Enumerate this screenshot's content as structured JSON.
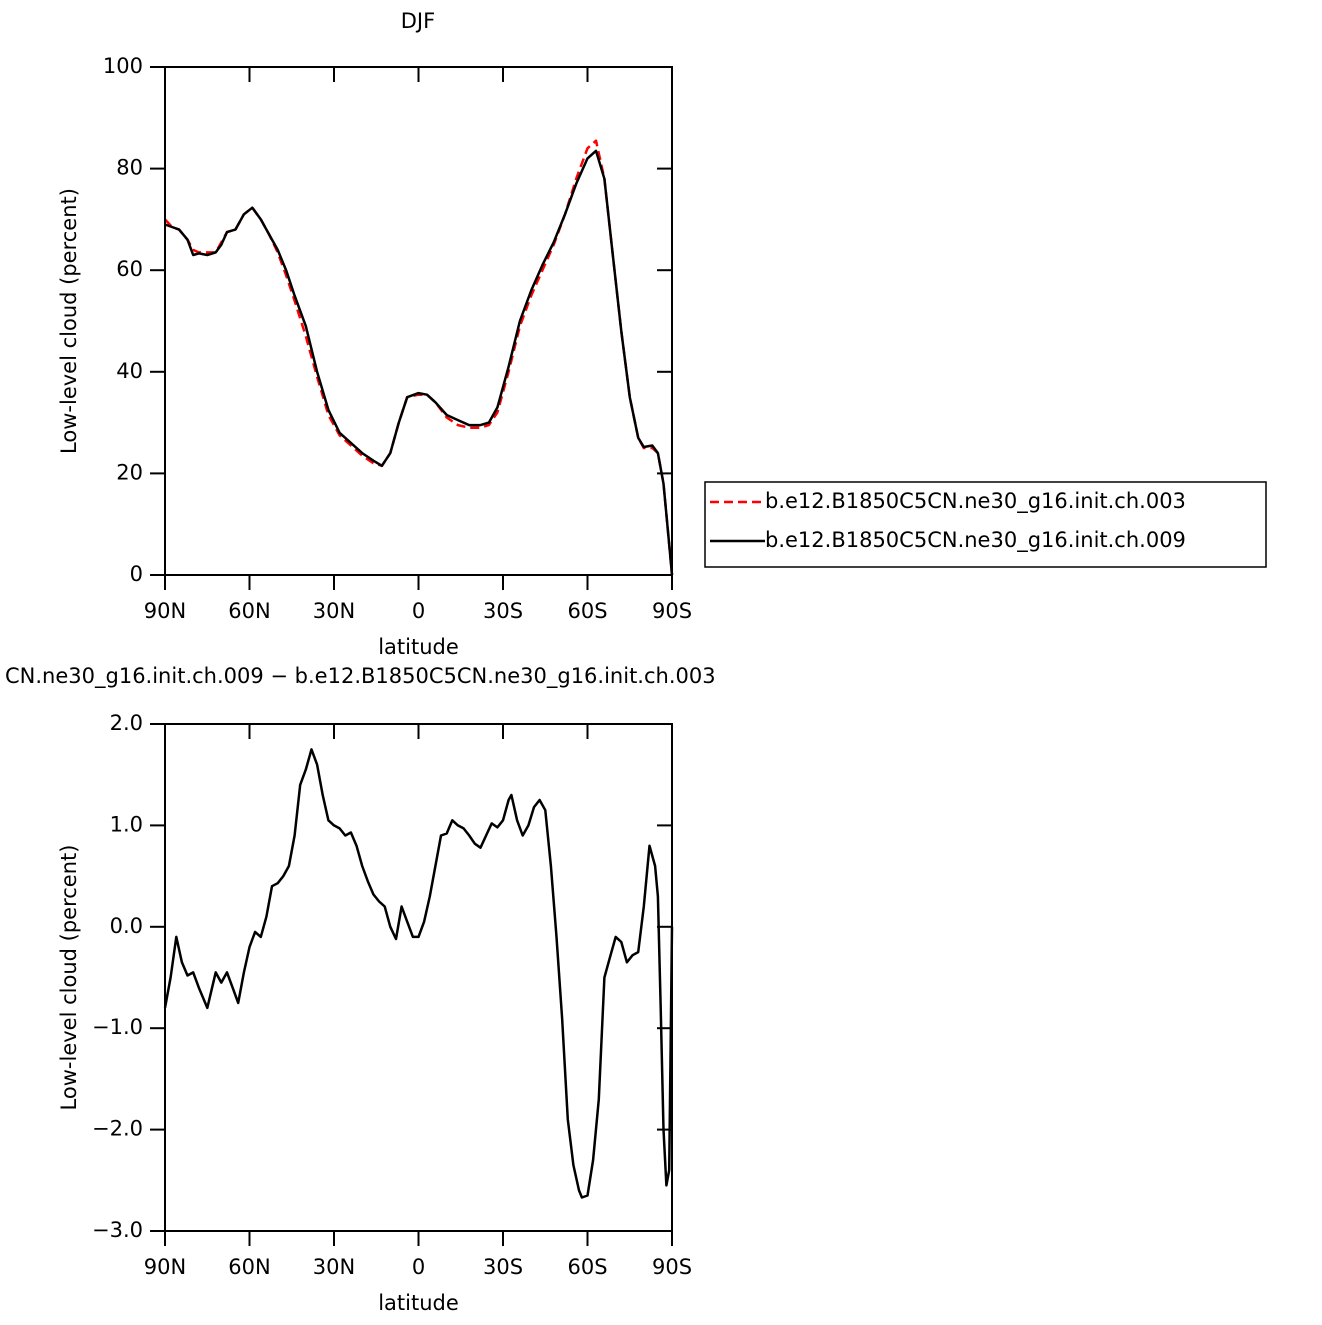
{
  "chart_data": [
    {
      "type": "line",
      "title": "DJF",
      "xlabel": "latitude",
      "ylabel": "Low-level cloud (percent)",
      "xlim": [
        90,
        -90
      ],
      "xticks": [
        {
          "value": 90,
          "label": "90N"
        },
        {
          "value": 60,
          "label": "60N"
        },
        {
          "value": 30,
          "label": "30N"
        },
        0,
        {
          "value": -30,
          "label": "30S"
        },
        {
          "value": -60,
          "label": "60S"
        },
        {
          "value": -90,
          "label": "90S"
        }
      ],
      "ylim": [
        0,
        100
      ],
      "yticks": [
        0,
        20,
        40,
        60,
        80,
        100
      ],
      "legend": "right",
      "x": [
        90,
        87.5,
        85,
        82,
        80,
        78,
        75,
        72,
        70,
        68,
        65,
        62,
        59,
        56,
        53,
        50,
        47,
        44,
        40,
        36,
        32,
        28,
        24,
        20,
        16,
        13,
        10,
        7,
        4,
        0,
        -3,
        -6,
        -10,
        -14,
        -18,
        -22,
        -25,
        -28,
        -32,
        -36,
        -40,
        -44,
        -48,
        -52,
        -56,
        -60,
        -63,
        -66,
        -69,
        -72,
        -75,
        -78,
        -80,
        -83,
        -85,
        -87,
        -89,
        -90
      ],
      "series": [
        {
          "name": "b.e12.B1850C5CN.ne30_g16.init.ch.003",
          "color": "#ff0000",
          "linestyle": "dashed",
          "values": [
            70,
            68.5,
            68,
            66,
            64,
            63.5,
            63.5,
            63.5,
            65.5,
            67.5,
            68,
            71,
            72.3,
            70,
            67,
            63.5,
            59,
            54,
            47,
            39,
            31.5,
            27.5,
            25.5,
            23.5,
            22,
            21.5,
            24,
            30,
            35,
            35.5,
            35.5,
            34,
            31,
            29.5,
            29,
            29,
            29.5,
            32,
            40,
            49,
            55,
            60,
            65,
            71,
            78,
            84,
            85.5,
            78,
            63,
            48,
            35,
            27,
            25,
            25,
            24,
            18,
            6,
            0
          ]
        },
        {
          "name": "b.e12.B1850C5CN.ne30_g16.init.ch.009",
          "color": "#000000",
          "linestyle": "solid",
          "values": [
            69,
            68.5,
            68,
            66,
            63,
            63.3,
            63,
            63.5,
            65,
            67.5,
            68,
            71,
            72.3,
            70,
            67,
            64,
            60,
            55,
            49,
            40,
            32.5,
            28,
            26,
            24,
            22.5,
            21.5,
            24,
            30,
            35,
            35.8,
            35.5,
            34,
            31.5,
            30.5,
            29.5,
            29.5,
            30,
            33,
            41,
            50,
            56,
            61,
            65.5,
            71,
            77,
            82,
            83.5,
            78,
            63,
            48,
            35,
            27,
            25.2,
            25.5,
            24,
            18,
            6,
            0
          ]
        }
      ]
    },
    {
      "type": "line",
      "title": "CN.ne30_g16.init.ch.009 − b.e12.B1850C5CN.ne30_g16.init.ch.003",
      "xlabel": "latitude",
      "ylabel": "Low-level cloud (percent)",
      "xlim": [
        90,
        -90
      ],
      "xticks": [
        {
          "value": 90,
          "label": "90N"
        },
        {
          "value": 60,
          "label": "60N"
        },
        {
          "value": 30,
          "label": "30N"
        },
        0,
        {
          "value": -30,
          "label": "30S"
        },
        {
          "value": -60,
          "label": "60S"
        },
        {
          "value": -90,
          "label": "90S"
        }
      ],
      "ylim": [
        -3,
        2
      ],
      "yticks": [
        {
          "value": -3,
          "label": "−3.0"
        },
        {
          "value": -2,
          "label": "−2.0"
        },
        {
          "value": -1,
          "label": "−1.0"
        },
        {
          "value": 0,
          "label": "0.0"
        },
        {
          "value": 1,
          "label": "1.0"
        },
        {
          "value": 2,
          "label": "2.0"
        }
      ],
      "x": [
        90,
        88,
        86,
        84,
        82,
        80,
        78,
        75,
        72,
        70,
        68,
        66,
        64,
        62,
        60,
        58,
        56,
        54,
        52,
        50,
        48,
        46,
        44,
        42,
        40,
        38,
        36,
        34,
        32,
        30,
        28,
        26,
        24,
        22,
        20,
        18,
        16,
        14,
        12,
        10,
        8,
        6,
        4,
        2,
        0,
        -2,
        -4,
        -6,
        -8,
        -10,
        -12,
        -14,
        -16,
        -18,
        -20,
        -22,
        -24,
        -26,
        -28,
        -30,
        -32,
        -33,
        -35,
        -37,
        -39,
        -41,
        -43,
        -45,
        -47,
        -49,
        -51,
        -53,
        -55,
        -57,
        -58,
        -60,
        -62,
        -64,
        -66,
        -68,
        -70,
        -72,
        -74,
        -76,
        -78,
        -80,
        -82,
        -84,
        -85,
        -86,
        -87,
        -88,
        -89,
        -90
      ],
      "series": [
        {
          "color": "#000000",
          "linestyle": "solid",
          "values": [
            -0.8,
            -0.5,
            -0.1,
            -0.35,
            -0.48,
            -0.45,
            -0.6,
            -0.8,
            -0.45,
            -0.55,
            -0.45,
            -0.6,
            -0.75,
            -0.45,
            -0.2,
            -0.05,
            -0.1,
            0.1,
            0.4,
            0.43,
            0.5,
            0.6,
            0.9,
            1.4,
            1.55,
            1.75,
            1.6,
            1.3,
            1.05,
            1.0,
            0.97,
            0.9,
            0.93,
            0.8,
            0.6,
            0.45,
            0.32,
            0.25,
            0.2,
            0.0,
            -0.12,
            0.2,
            0.05,
            -0.1,
            -0.1,
            0.05,
            0.3,
            0.6,
            0.9,
            0.92,
            1.05,
            1.0,
            0.97,
            0.9,
            0.82,
            0.78,
            0.9,
            1.02,
            0.98,
            1.05,
            1.25,
            1.3,
            1.05,
            0.9,
            1.0,
            1.18,
            1.25,
            1.15,
            0.6,
            -0.1,
            -0.9,
            -1.9,
            -2.35,
            -2.6,
            -2.67,
            -2.65,
            -2.3,
            -1.7,
            -0.5,
            -0.3,
            -0.1,
            -0.15,
            -0.35,
            -0.28,
            -0.25,
            0.2,
            0.8,
            0.6,
            0.3,
            -0.8,
            -2.0,
            -2.55,
            -2.4,
            0.0
          ]
        }
      ]
    }
  ]
}
